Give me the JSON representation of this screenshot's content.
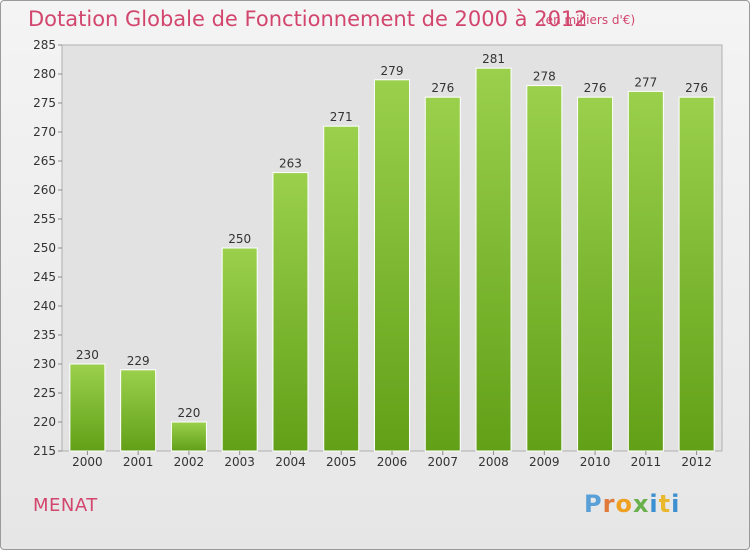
{
  "header": {
    "title": "Dotation Globale de Fonctionnement de 2000 à 2012",
    "subtitle": "(en milliers d'€)"
  },
  "footer": {
    "commune": "MENAT",
    "logo_text": "Proxiti"
  },
  "colors": {
    "accent": "#d2466e",
    "bar_top": "#9ad04c",
    "bar_bottom": "#62a018"
  },
  "chart_data": {
    "type": "bar",
    "categories": [
      "2000",
      "2001",
      "2002",
      "2003",
      "2004",
      "2005",
      "2006",
      "2007",
      "2008",
      "2009",
      "2010",
      "2011",
      "2012"
    ],
    "values": [
      230,
      229,
      220,
      250,
      263,
      271,
      279,
      276,
      281,
      278,
      276,
      277,
      276
    ],
    "ylim": [
      215,
      285
    ],
    "yticks": [
      215,
      220,
      225,
      230,
      235,
      240,
      245,
      250,
      255,
      260,
      265,
      270,
      275,
      280,
      285
    ],
    "grid": false,
    "data_labels": true
  }
}
